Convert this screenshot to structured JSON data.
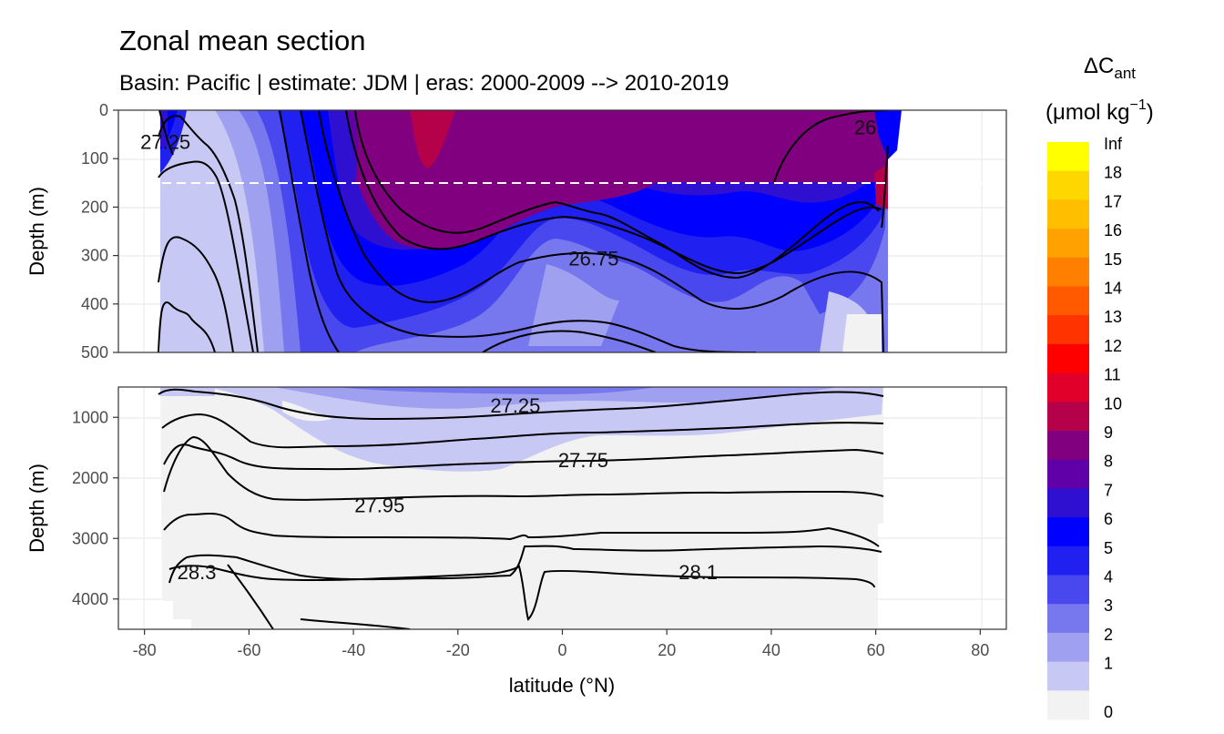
{
  "chart_data": {
    "type": "heatmap",
    "title": "Zonal mean section",
    "subtitle": "Basin: Pacific | estimate: JDM  | eras: 2000-2009 --> 2010-2019",
    "xlabel": "latitude (°N)",
    "ylabel": "Depth (m)",
    "xlim": [
      -85,
      85
    ],
    "x_ticks": [
      "-80",
      "-60",
      "-40",
      "-20",
      "0",
      "20",
      "40",
      "60",
      "80"
    ],
    "x_tick_values": [
      -80,
      -60,
      -40,
      -20,
      0,
      20,
      40,
      60,
      80
    ],
    "panels": [
      {
        "name": "upper",
        "ylim": [
          0,
          500
        ],
        "y_ticks": [
          "0",
          "100",
          "200",
          "300",
          "400",
          "500"
        ],
        "y_tick_values": [
          0,
          100,
          200,
          300,
          400,
          500
        ],
        "reference_line_depth": 150,
        "contour_labels": [
          {
            "text": "27.25",
            "lat": -76,
            "depth": 65
          },
          {
            "text": "26.75",
            "lat": 6,
            "depth": 305
          },
          {
            "text": "26",
            "lat": 58,
            "depth": 35
          }
        ]
      },
      {
        "name": "lower",
        "ylim": [
          500,
          4500
        ],
        "y_ticks": [
          "1000",
          "2000",
          "3000",
          "4000"
        ],
        "y_tick_values": [
          1000,
          2000,
          3000,
          4000
        ],
        "contour_labels": [
          {
            "text": "27.25",
            "lat": -9,
            "depth": 800
          },
          {
            "text": "27.75",
            "lat": 4,
            "depth": 1700
          },
          {
            "text": "27.95",
            "lat": -35,
            "depth": 2450
          },
          {
            "text": "28.3",
            "lat": -70,
            "depth": 3550
          },
          {
            "text": "28.1",
            "lat": 26,
            "depth": 3550
          }
        ]
      }
    ],
    "legend": {
      "title_main": "ΔC",
      "title_sub": "ant",
      "units_pre": "(μmol kg",
      "units_sup": "−1",
      "units_post": ")",
      "labels": [
        "Inf",
        "18",
        "17",
        "16",
        "15",
        "14",
        "13",
        "12",
        "11",
        "10",
        "9",
        "8",
        "7",
        "6",
        "5",
        "4",
        "3",
        "2",
        "1",
        "0"
      ],
      "colors": [
        "#ffff00",
        "#ffd700",
        "#ffbf00",
        "#ffa100",
        "#ff7f00",
        "#ff5a00",
        "#ff3300",
        "#ff0000",
        "#e0002a",
        "#b5004a",
        "#800080",
        "#6000a8",
        "#3010d0",
        "#0000ff",
        "#2020f0",
        "#4848ee",
        "#7878ee",
        "#a0a0f0",
        "#c8c8f4",
        "#f2f2f2"
      ]
    }
  }
}
